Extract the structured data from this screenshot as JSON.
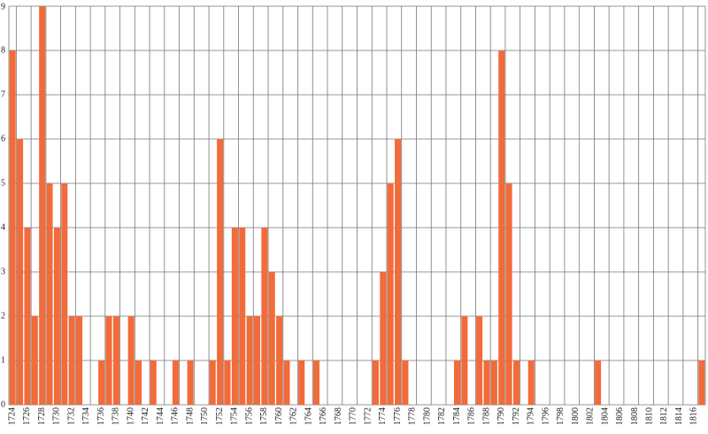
{
  "chart_data": {
    "type": "bar",
    "categories": [
      "1724",
      null,
      "1726",
      null,
      "1728",
      null,
      "1730",
      null,
      "1732",
      null,
      "1734",
      null,
      "1736",
      null,
      "1738",
      null,
      "1740",
      null,
      "1742",
      null,
      "1744",
      null,
      "1746",
      null,
      "1748",
      null,
      "1750",
      null,
      "1752",
      null,
      "1754",
      null,
      "1756",
      null,
      "1758",
      null,
      "1760",
      null,
      "1762",
      null,
      "1764",
      null,
      "1766",
      null,
      "1768",
      null,
      "1770",
      null,
      "1772",
      null,
      "1774",
      null,
      "1776",
      null,
      "1778",
      null,
      "1780",
      null,
      "1782",
      null,
      "1784",
      null,
      "1786",
      null,
      "1788",
      null,
      "1790",
      null,
      "1792",
      null,
      "1794",
      null,
      "1796",
      null,
      "1798",
      null,
      "1800",
      null,
      "1802",
      null,
      "1804",
      null,
      "1806",
      null,
      "1808",
      null,
      "1810",
      null,
      "1812",
      null,
      "1814",
      null,
      "1816",
      null
    ],
    "values": [
      8,
      6,
      4,
      2,
      9,
      5,
      4,
      5,
      2,
      2,
      0,
      0,
      1,
      2,
      2,
      0,
      2,
      1,
      0,
      1,
      0,
      0,
      1,
      0,
      1,
      0,
      0,
      1,
      6,
      1,
      4,
      4,
      2,
      2,
      4,
      3,
      2,
      1,
      0,
      1,
      0,
      1,
      0,
      0,
      0,
      0,
      0,
      0,
      0,
      1,
      3,
      5,
      6,
      1,
      0,
      0,
      0,
      0,
      0,
      0,
      1,
      2,
      0,
      2,
      1,
      1,
      8,
      5,
      1,
      0,
      1,
      0,
      0,
      0,
      0,
      0,
      0,
      0,
      0,
      1,
      0,
      0,
      0,
      0,
      0,
      0,
      0,
      0,
      0,
      0,
      0,
      0,
      0,
      1
    ],
    "color": "#f26b3a",
    "ylim": [
      0,
      9
    ],
    "yticks": [
      0,
      1,
      2,
      3,
      4,
      5,
      6,
      7,
      8,
      9
    ],
    "grid": true
  }
}
